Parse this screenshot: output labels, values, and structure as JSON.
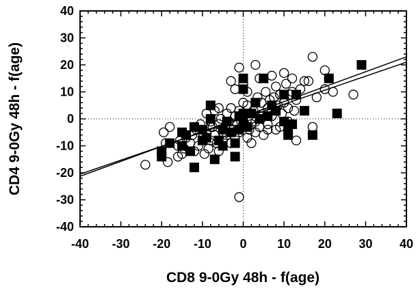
{
  "chart_data": {
    "type": "scatter",
    "title": "",
    "xlabel": "CD8 9-0Gy 48h - f(age)",
    "ylabel": "CD4 9-0Gy 48h - f(age)",
    "xlim": [
      -40,
      40
    ],
    "ylim": [
      -40,
      40
    ],
    "x_ticks": [
      -40,
      -30,
      -20,
      -10,
      0,
      10,
      20,
      30,
      40
    ],
    "y_ticks": [
      -40,
      -30,
      -20,
      -10,
      0,
      10,
      20,
      30,
      40
    ],
    "x_tick_labels": [
      "-40",
      "-30",
      "-20",
      "-10",
      "0",
      "10",
      "20",
      "30",
      "40"
    ],
    "y_tick_labels": [
      "-40",
      "-30",
      "-20",
      "-10",
      "0",
      "10",
      "20",
      "30",
      "40"
    ],
    "grid": false,
    "zero_reference_lines": true,
    "series": [
      {
        "marker": "open-circle",
        "points": [
          [
            -24,
            -17
          ],
          [
            -19.5,
            -5
          ],
          [
            -19,
            -9
          ],
          [
            -18.5,
            -16
          ],
          [
            -18,
            -3
          ],
          [
            -16,
            -10
          ],
          [
            -15.5,
            -8
          ],
          [
            -15,
            -13
          ],
          [
            -14.5,
            -11
          ],
          [
            -14,
            -7
          ],
          [
            -13,
            -9
          ],
          [
            -12.5,
            -6
          ],
          [
            -12,
            -12
          ],
          [
            -11.5,
            -4
          ],
          [
            -11,
            -10
          ],
          [
            -10.5,
            -2
          ],
          [
            -10,
            -7
          ],
          [
            -9.5,
            -13
          ],
          [
            -9,
            -5
          ],
          [
            -9,
            2
          ],
          [
            -8.5,
            -11
          ],
          [
            -8,
            -8
          ],
          [
            -8,
            -1
          ],
          [
            -7.5,
            -3
          ],
          [
            -7,
            -6
          ],
          [
            -7,
            3
          ],
          [
            -6.5,
            -9
          ],
          [
            -6,
            -2
          ],
          [
            -6,
            -12
          ],
          [
            -5.5,
            0
          ],
          [
            -5,
            -5
          ],
          [
            -5,
            -8
          ],
          [
            -4.5,
            -3
          ],
          [
            -4,
            2
          ],
          [
            -4,
            -6
          ],
          [
            -3.5,
            -1
          ],
          [
            -3,
            -9
          ],
          [
            -3,
            4
          ],
          [
            -2.5,
            -4
          ],
          [
            -2,
            1
          ],
          [
            -2,
            -7
          ],
          [
            -1.5,
            -2
          ],
          [
            -1,
            3
          ],
          [
            -1,
            -5
          ],
          [
            -0.5,
            -1
          ],
          [
            -1,
            -29
          ],
          [
            0,
            -3
          ],
          [
            0,
            6
          ],
          [
            0.5,
            2
          ],
          [
            1,
            -7
          ],
          [
            1,
            5
          ],
          [
            1.5,
            -4
          ],
          [
            2,
            0
          ],
          [
            2,
            -9
          ],
          [
            2.5,
            3
          ],
          [
            3,
            -5
          ],
          [
            3,
            -1
          ],
          [
            3.5,
            8
          ],
          [
            4,
            1
          ],
          [
            4,
            -3
          ],
          [
            4.5,
            6
          ],
          [
            5,
            -6
          ],
          [
            5,
            2
          ],
          [
            5.5,
            10
          ],
          [
            6,
            4
          ],
          [
            6,
            -4
          ],
          [
            6.5,
            7
          ],
          [
            7,
            1
          ],
          [
            7,
            16
          ],
          [
            7.5,
            8
          ],
          [
            8,
            12
          ],
          [
            8,
            -4
          ],
          [
            8.5,
            5
          ],
          [
            9,
            -3
          ],
          [
            9,
            9
          ],
          [
            9.5,
            2
          ],
          [
            10,
            17
          ],
          [
            10,
            6
          ],
          [
            10.5,
            13
          ],
          [
            11,
            -1
          ],
          [
            11,
            4
          ],
          [
            11.5,
            9
          ],
          [
            12,
            10
          ],
          [
            12,
            15
          ],
          [
            12.5,
            3
          ],
          [
            13,
            -8
          ],
          [
            13,
            7
          ],
          [
            14,
            11
          ],
          [
            15,
            14
          ],
          [
            16,
            14
          ],
          [
            17,
            -3
          ],
          [
            17,
            23
          ],
          [
            18,
            8
          ],
          [
            20,
            18
          ],
          [
            20,
            11
          ],
          [
            21,
            15
          ],
          [
            22,
            10
          ],
          [
            27,
            9
          ],
          [
            -1,
            19
          ],
          [
            3,
            20
          ],
          [
            0,
            13
          ],
          [
            -3,
            14
          ],
          [
            1,
            10
          ],
          [
            -2,
            11
          ],
          [
            4,
            15
          ],
          [
            6,
            -2
          ],
          [
            2,
            -2
          ],
          [
            -6,
            4
          ],
          [
            -8,
            -3
          ],
          [
            -16,
            -14
          ]
        ]
      },
      {
        "marker": "filled-square",
        "points": [
          [
            -20,
            -14
          ],
          [
            -20,
            -12
          ],
          [
            -18,
            -9
          ],
          [
            -15,
            -10
          ],
          [
            -15,
            -5
          ],
          [
            -14,
            -6
          ],
          [
            -13,
            -12
          ],
          [
            -12,
            -18
          ],
          [
            -12,
            -3
          ],
          [
            -10,
            -8
          ],
          [
            -9,
            -7
          ],
          [
            -8,
            0
          ],
          [
            -8,
            5
          ],
          [
            -7,
            -15
          ],
          [
            -6,
            -8
          ],
          [
            -5,
            -4
          ],
          [
            -5,
            -10
          ],
          [
            -4,
            -1
          ],
          [
            -3,
            -5
          ],
          [
            -2,
            -14
          ],
          [
            -2,
            -9
          ],
          [
            -1,
            1
          ],
          [
            0,
            2
          ],
          [
            0,
            15
          ],
          [
            0,
            11
          ],
          [
            0,
            -1
          ],
          [
            1,
            -3
          ],
          [
            2,
            2
          ],
          [
            3,
            6
          ],
          [
            4,
            0
          ],
          [
            5,
            15
          ],
          [
            6,
            1
          ],
          [
            7,
            5
          ],
          [
            8,
            3
          ],
          [
            10,
            -1
          ],
          [
            10,
            9
          ],
          [
            11,
            -4
          ],
          [
            12,
            -2
          ],
          [
            13,
            9
          ],
          [
            15,
            3
          ],
          [
            17,
            -6
          ],
          [
            21,
            15
          ],
          [
            23,
            2
          ],
          [
            29,
            20
          ],
          [
            11,
            -6
          ],
          [
            -10,
            -4
          ],
          [
            -1,
            -4
          ]
        ]
      }
    ],
    "fit_lines": [
      {
        "x": [
          -40,
          40
        ],
        "y": [
          -20.5,
          21
        ]
      },
      {
        "x": [
          -40,
          40
        ],
        "y": [
          -21.3,
          23
        ]
      }
    ]
  }
}
